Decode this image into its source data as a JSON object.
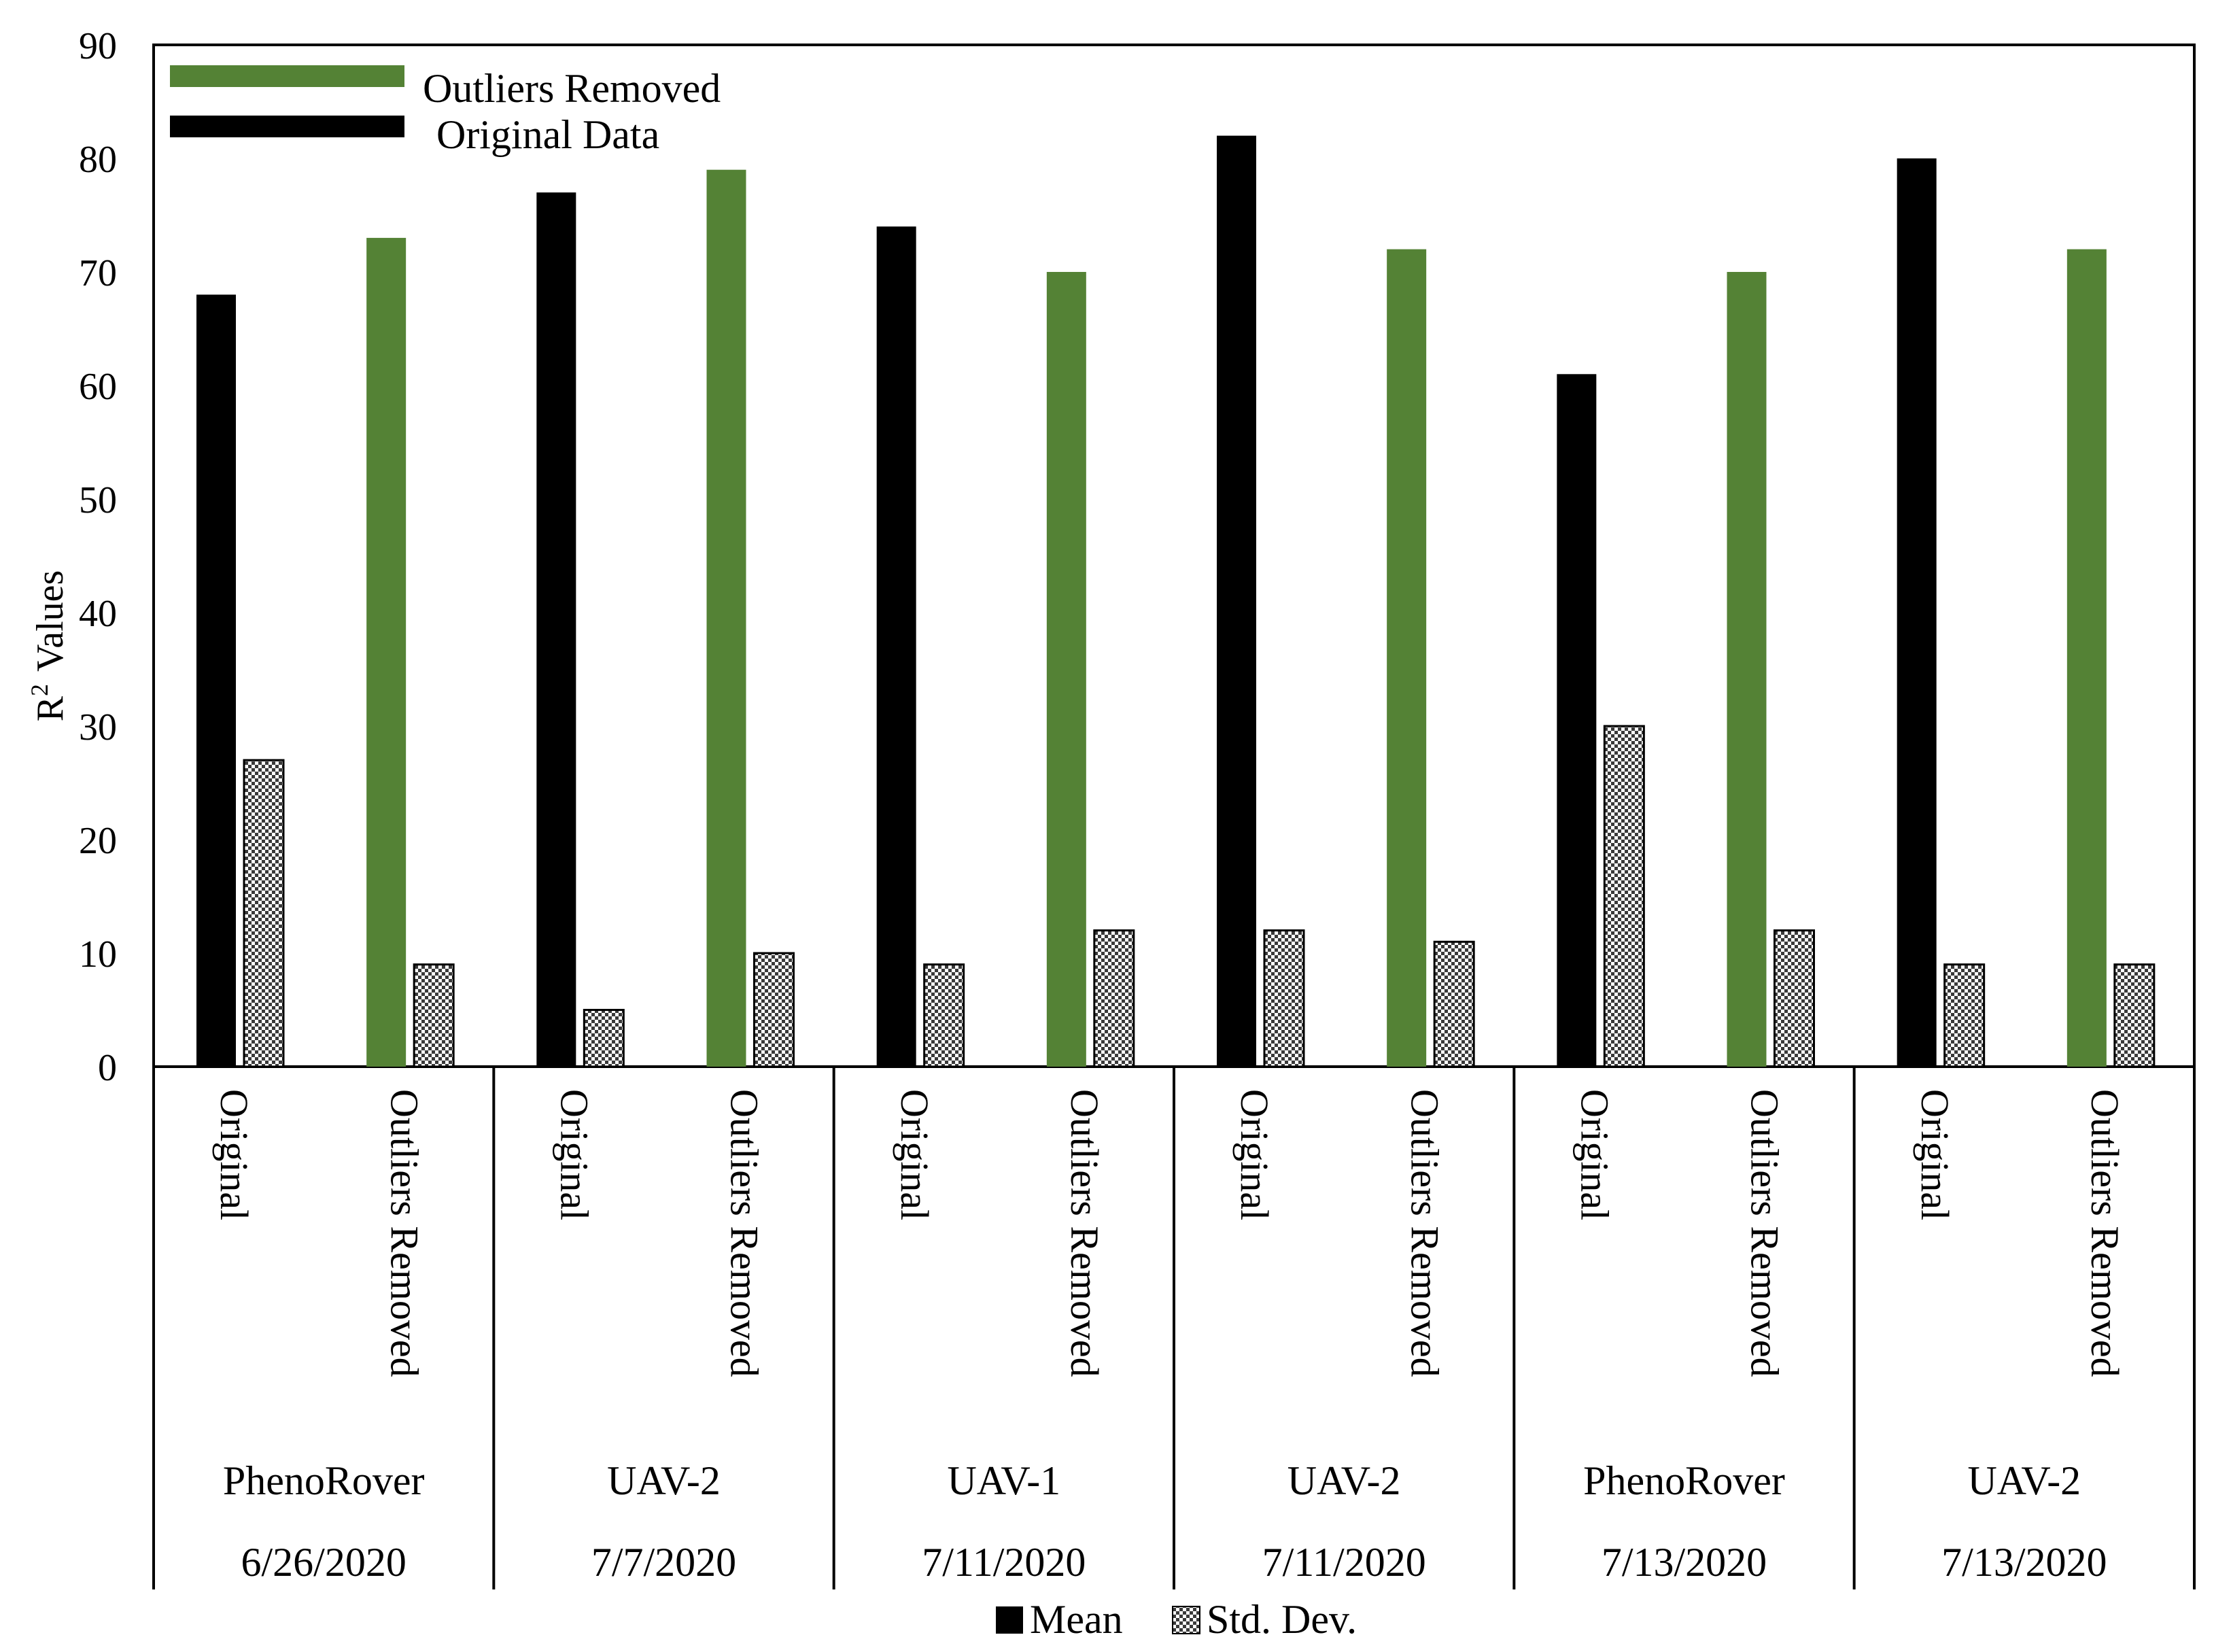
{
  "colors": {
    "original": "#000000",
    "outliers_removed": "#548235",
    "std_dev_pattern": "checkerboard-gray",
    "axis": "#000000",
    "background": "#ffffff"
  },
  "chart_data": {
    "type": "bar",
    "ylabel_main": "R",
    "ylabel_sup": "2",
    "ylabel_rest": "Values",
    "ylim": [
      0,
      90
    ],
    "yticks": [
      0,
      10,
      20,
      30,
      40,
      50,
      60,
      70,
      80,
      90
    ],
    "grid": false,
    "legend_top": [
      {
        "label": "Outliers Removed",
        "color": "#548235"
      },
      {
        "label": "Original Data",
        "color": "#000000"
      }
    ],
    "legend_bottom": [
      {
        "label": "Mean",
        "icon": "solid-square"
      },
      {
        "label": "Std. Dev.",
        "icon": "checker-square"
      }
    ],
    "groups": [
      {
        "platform": "PhenoRover",
        "date": "6/26/2020",
        "subgroups": [
          {
            "label": "Original",
            "mean": 68,
            "std": 27
          },
          {
            "label": "Outliers Removed",
            "mean": 73,
            "std": 9
          }
        ]
      },
      {
        "platform": "UAV-2",
        "date": "7/7/2020",
        "subgroups": [
          {
            "label": "Original",
            "mean": 77,
            "std": 5
          },
          {
            "label": "Outliers Removed",
            "mean": 79,
            "std": 10
          }
        ]
      },
      {
        "platform": "UAV-1",
        "date": "7/11/2020",
        "subgroups": [
          {
            "label": "Original",
            "mean": 74,
            "std": 9
          },
          {
            "label": "Outliers Removed",
            "mean": 70,
            "std": 12
          }
        ]
      },
      {
        "platform": "UAV-2",
        "date": "7/11/2020",
        "subgroups": [
          {
            "label": "Original",
            "mean": 82,
            "std": 12
          },
          {
            "label": "Outliers Removed",
            "mean": 72,
            "std": 11
          }
        ]
      },
      {
        "platform": "PhenoRover",
        "date": "7/13/2020",
        "subgroups": [
          {
            "label": "Original",
            "mean": 61,
            "std": 30
          },
          {
            "label": "Outliers Removed",
            "mean": 70,
            "std": 12
          }
        ]
      },
      {
        "platform": "UAV-2",
        "date": "7/13/2020",
        "subgroups": [
          {
            "label": "Original",
            "mean": 80,
            "std": 9
          },
          {
            "label": "Outliers Removed",
            "mean": 72,
            "std": 9
          }
        ]
      }
    ]
  }
}
